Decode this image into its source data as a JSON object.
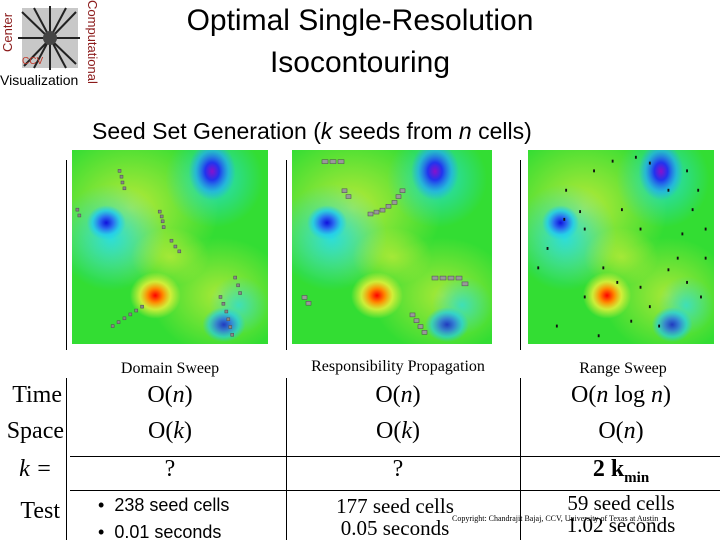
{
  "logo": {
    "top_text": "Center",
    "side_text": "Computational",
    "bottom_text": "Visualization",
    "mark_text": "CCV"
  },
  "slide": {
    "title": "Optimal Single-Resolution Isocontouring",
    "subtitle_pre": "Seed Set Generation (",
    "subtitle_k": "k",
    "subtitle_mid": " seeds from ",
    "subtitle_n": "n",
    "subtitle_post": " cells)"
  },
  "columns": [
    {
      "label": "Domain Sweep",
      "time": "O(n)",
      "space": "O(k)",
      "k": "?",
      "test1": "238 seed cells",
      "test2": "0.01 seconds"
    },
    {
      "label": "Responsibility Propagation",
      "time": "O(n)",
      "space": "O(k)",
      "k": "?",
      "test1": "177 seed cells",
      "test2": "0.05 seconds"
    },
    {
      "label": "Range Sweep",
      "time": "O(n log n)",
      "space": "O(n)",
      "k": "2 k",
      "k_sub": "min",
      "test1": "59 seed cells",
      "test2": "1.02 seconds"
    }
  ],
  "rows": {
    "time": "Time",
    "space": "Space",
    "k": "k =",
    "test": "Test"
  },
  "bullet": "•",
  "copyright": "Copyright: Chandrajit Bajaj, CCV, University of Texas at Austin",
  "colors": {
    "field_green": "#33dd33",
    "field_yellow": "#f2f23a",
    "hot": "#ff2200",
    "cold": "#1133ee",
    "seed": "#888888"
  }
}
